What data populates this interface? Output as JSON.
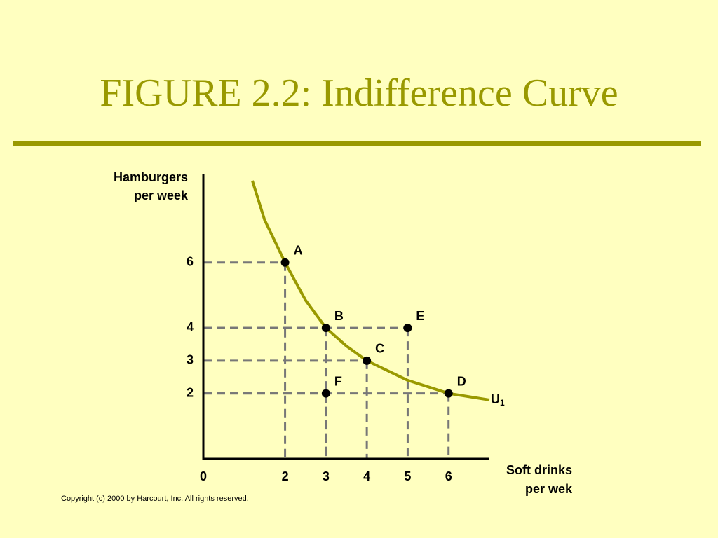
{
  "chart_data": {
    "type": "scatter",
    "title": "FIGURE 2.2: Indifference Curve",
    "ylabel": [
      "Hamburgers",
      "per week"
    ],
    "xlabel": [
      "Soft drinks",
      "per wek"
    ],
    "copyright": "Copyright (c) 2000 by Harcourt, Inc.  All rights reserved.",
    "xlim": [
      0,
      7
    ],
    "ylim": [
      0,
      8.5
    ],
    "xticks": [
      0,
      2,
      3,
      4,
      5,
      6
    ],
    "yticks": [
      2,
      3,
      4,
      6
    ],
    "curve_label": {
      "main": "U",
      "sub": "1"
    },
    "series": [
      {
        "type": "scatter",
        "color": "#000000",
        "labels": [
          "A",
          "B",
          "C",
          "D",
          "E",
          "F"
        ],
        "x": [
          2,
          3,
          4,
          6,
          5,
          3
        ],
        "values": [
          6,
          4,
          3,
          2,
          4,
          2
        ]
      },
      {
        "type": "line",
        "color": "#999900",
        "x": [
          1.2,
          1.5,
          2,
          2.5,
          3,
          3.5,
          4,
          5,
          6,
          7
        ],
        "values": [
          8.5,
          7.3,
          6,
          4.85,
          4,
          3.45,
          3,
          2.4,
          2,
          1.8
        ]
      }
    ]
  }
}
